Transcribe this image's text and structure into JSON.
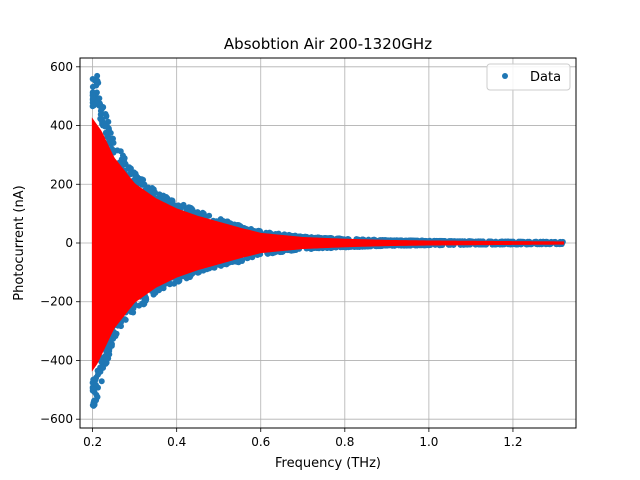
{
  "chart_data": {
    "type": "scatter",
    "title": "Absobtion Air 200-1320GHz",
    "xlabel": "Frequency (THz)",
    "ylabel": "Photocurrent (nA)",
    "xlim": [
      0.17,
      1.35
    ],
    "ylim": [
      -630,
      630
    ],
    "x_ticks": [
      0.2,
      0.4,
      0.6,
      0.8,
      1.0,
      1.2
    ],
    "x_tick_labels": [
      "0.2",
      "0.4",
      "0.6",
      "0.8",
      "1.0",
      "1.2"
    ],
    "y_ticks": [
      -600,
      -400,
      -200,
      0,
      200,
      400,
      600
    ],
    "y_tick_labels": [
      "−600",
      "−400",
      "−200",
      "0",
      "200",
      "400",
      "600"
    ],
    "grid": true,
    "legend": {
      "placement": "top-right",
      "entries": [
        "Data"
      ]
    },
    "series": [
      {
        "name": "Data",
        "color": "#1f77b4",
        "marker": "point",
        "envelope": {
          "x": [
            0.2,
            0.21,
            0.22,
            0.25,
            0.3,
            0.35,
            0.4,
            0.45,
            0.5,
            0.55,
            0.6,
            0.7,
            0.8,
            0.9,
            1.0,
            1.1,
            1.2,
            1.32
          ],
          "upper": [
            560,
            580,
            500,
            350,
            240,
            180,
            140,
            110,
            85,
            60,
            40,
            22,
            15,
            10,
            8,
            6,
            5,
            4
          ],
          "lower": [
            -570,
            -540,
            -480,
            -330,
            -240,
            -170,
            -135,
            -105,
            -80,
            -65,
            -40,
            -22,
            -15,
            -10,
            -8,
            -6,
            -5,
            -4
          ]
        }
      },
      {
        "color": "#ff0000",
        "marker": "line",
        "envelope": {
          "x": [
            0.2,
            0.21,
            0.22,
            0.25,
            0.3,
            0.35,
            0.4,
            0.45,
            0.5,
            0.55,
            0.6,
            0.7,
            0.8,
            0.9,
            1.0,
            1.1,
            1.2,
            1.32
          ],
          "upper": [
            420,
            400,
            380,
            290,
            200,
            150,
            115,
            90,
            70,
            50,
            32,
            18,
            12,
            8,
            6,
            5,
            4,
            3
          ],
          "lower": [
            -430,
            -410,
            -380,
            -290,
            -200,
            -150,
            -115,
            -90,
            -70,
            -50,
            -32,
            -18,
            -12,
            -8,
            -6,
            -5,
            -4,
            -3
          ]
        }
      }
    ]
  }
}
